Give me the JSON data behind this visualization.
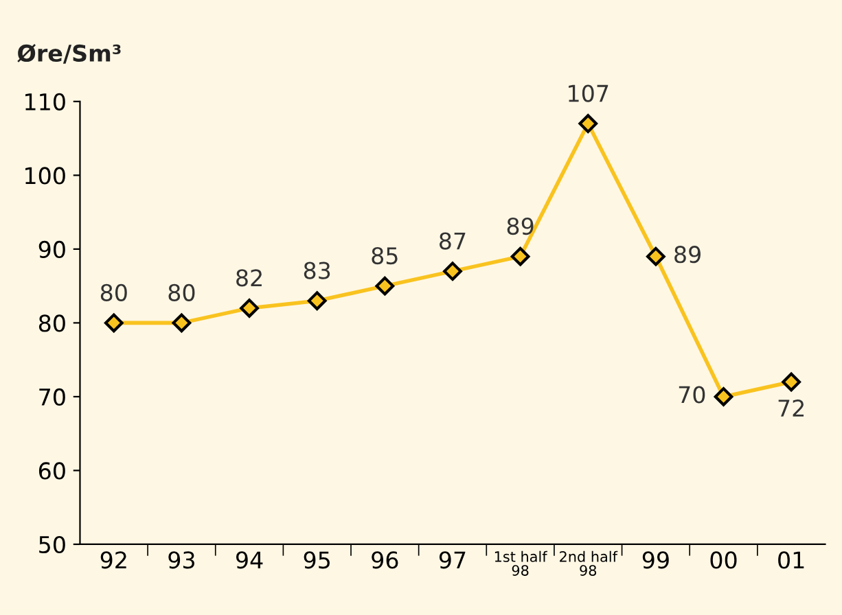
{
  "chart_data": {
    "type": "line",
    "ylabel": "Øre/Sm³",
    "categories": [
      "92",
      "93",
      "94",
      "95",
      "96",
      "97",
      "1st half\n98",
      "2nd half\n98",
      "99",
      "00",
      "01"
    ],
    "series": [
      {
        "color": "#f9c31f",
        "values": [
          80,
          80,
          82,
          83,
          85,
          87,
          89,
          107,
          89,
          70,
          72
        ]
      }
    ],
    "ylim": [
      50,
      110
    ],
    "yticks": [
      50,
      60,
      70,
      80,
      90,
      100,
      110
    ],
    "marker": "diamond",
    "data_labels": true,
    "grid": false,
    "legend": false
  }
}
